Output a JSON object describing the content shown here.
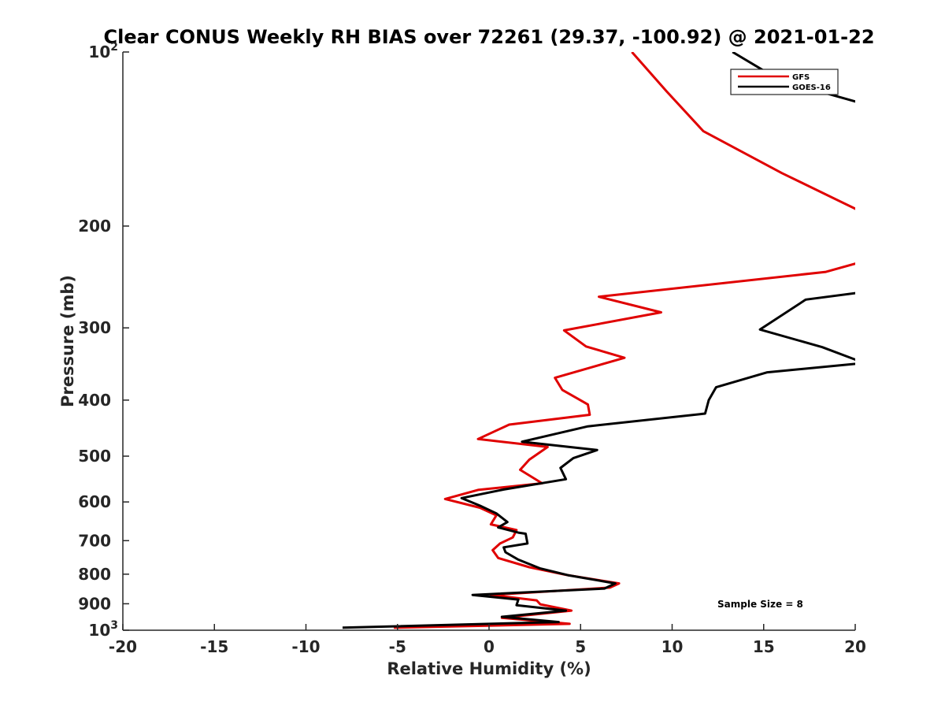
{
  "chart_data": {
    "type": "line",
    "title": "Clear CONUS Weekly RH BIAS over 72261 (29.37, -100.92) @ 2021-01-22",
    "xlabel": "Relative Humidity (%)",
    "ylabel": "Pressure (mb)",
    "xlim": [
      -20,
      20
    ],
    "ylim": [
      100,
      1000
    ],
    "y_scale": "log",
    "y_reversed": true,
    "grid": false,
    "legend_position": "top-right",
    "x_ticks": [
      -20,
      -15,
      -10,
      -5,
      0,
      5,
      10,
      15,
      20
    ],
    "x_tick_labels": [
      "-20",
      "-15",
      "-10",
      "-5",
      "0",
      "5",
      "10",
      "15",
      "20"
    ],
    "y_ticks": [
      100,
      200,
      300,
      400,
      500,
      600,
      700,
      800,
      900,
      1000
    ],
    "y_tick_labels": [
      {
        "base": "10",
        "exp": "2"
      },
      {
        "base": "200",
        "exp": ""
      },
      {
        "base": "300",
        "exp": ""
      },
      {
        "base": "400",
        "exp": ""
      },
      {
        "base": "500",
        "exp": ""
      },
      {
        "base": "600",
        "exp": ""
      },
      {
        "base": "700",
        "exp": ""
      },
      {
        "base": "800",
        "exp": ""
      },
      {
        "base": "900",
        "exp": ""
      },
      {
        "base": "10",
        "exp": "3"
      }
    ],
    "annotation": "Sample Size = 8",
    "series": [
      {
        "name": "GFS",
        "color": "#e00000",
        "points": [
          [
            7.8,
            100
          ],
          [
            9.7,
            117
          ],
          [
            11.7,
            137
          ],
          [
            16.0,
            162
          ],
          [
            20.5,
            190
          ],
          [
            20.5,
            230
          ],
          [
            18.4,
            240
          ],
          [
            6.0,
            265
          ],
          [
            9.4,
            282
          ],
          [
            4.1,
            303
          ],
          [
            5.3,
            323
          ],
          [
            7.4,
            338
          ],
          [
            3.6,
            366
          ],
          [
            4.0,
            384
          ],
          [
            5.4,
            407
          ],
          [
            5.5,
            424
          ],
          [
            1.1,
            441
          ],
          [
            -0.6,
            467
          ],
          [
            3.2,
            482
          ],
          [
            2.2,
            507
          ],
          [
            1.7,
            528
          ],
          [
            2.9,
            557
          ],
          [
            -0.6,
            572
          ],
          [
            -2.4,
            593
          ],
          [
            -0.5,
            614
          ],
          [
            0.4,
            633
          ],
          [
            0.1,
            656
          ],
          [
            1.5,
            671
          ],
          [
            1.3,
            691
          ],
          [
            0.6,
            708
          ],
          [
            0.2,
            727
          ],
          [
            0.5,
            750
          ],
          [
            2.2,
            778
          ],
          [
            4.2,
            802
          ],
          [
            7.1,
            830
          ],
          [
            6.6,
            844
          ],
          [
            0.1,
            869
          ],
          [
            2.6,
            888
          ],
          [
            2.8,
            902
          ],
          [
            4.5,
            925
          ],
          [
            0.7,
            952
          ],
          [
            4.4,
            975
          ],
          [
            -5.2,
            990
          ]
        ]
      },
      {
        "name": "GOES-16",
        "color": "#000000",
        "points": [
          [
            13.3,
            100
          ],
          [
            15.9,
            112
          ],
          [
            20.5,
            123
          ],
          [
            20.5,
            260
          ],
          [
            17.3,
            268
          ],
          [
            14.8,
            302
          ],
          [
            18.2,
            324
          ],
          [
            20.5,
            345
          ],
          [
            15.2,
            358
          ],
          [
            12.4,
            380
          ],
          [
            12.0,
            400
          ],
          [
            11.8,
            422
          ],
          [
            5.4,
            444
          ],
          [
            1.8,
            472
          ],
          [
            5.9,
            488
          ],
          [
            4.6,
            504
          ],
          [
            3.9,
            524
          ],
          [
            4.2,
            548
          ],
          [
            0.8,
            571
          ],
          [
            -1.5,
            591
          ],
          [
            -0.5,
            609
          ],
          [
            0.4,
            628
          ],
          [
            1.0,
            650
          ],
          [
            0.5,
            664
          ],
          [
            1.6,
            678
          ],
          [
            2.0,
            681
          ],
          [
            2.1,
            708
          ],
          [
            0.8,
            719
          ],
          [
            0.9,
            733
          ],
          [
            1.6,
            755
          ],
          [
            2.8,
            782
          ],
          [
            4.3,
            803
          ],
          [
            6.9,
            830
          ],
          [
            6.3,
            847
          ],
          [
            -0.9,
            869
          ],
          [
            1.6,
            885
          ],
          [
            1.5,
            905
          ],
          [
            4.2,
            925
          ],
          [
            0.7,
            948
          ],
          [
            3.8,
            968
          ],
          [
            -8.0,
            990
          ]
        ]
      }
    ]
  }
}
